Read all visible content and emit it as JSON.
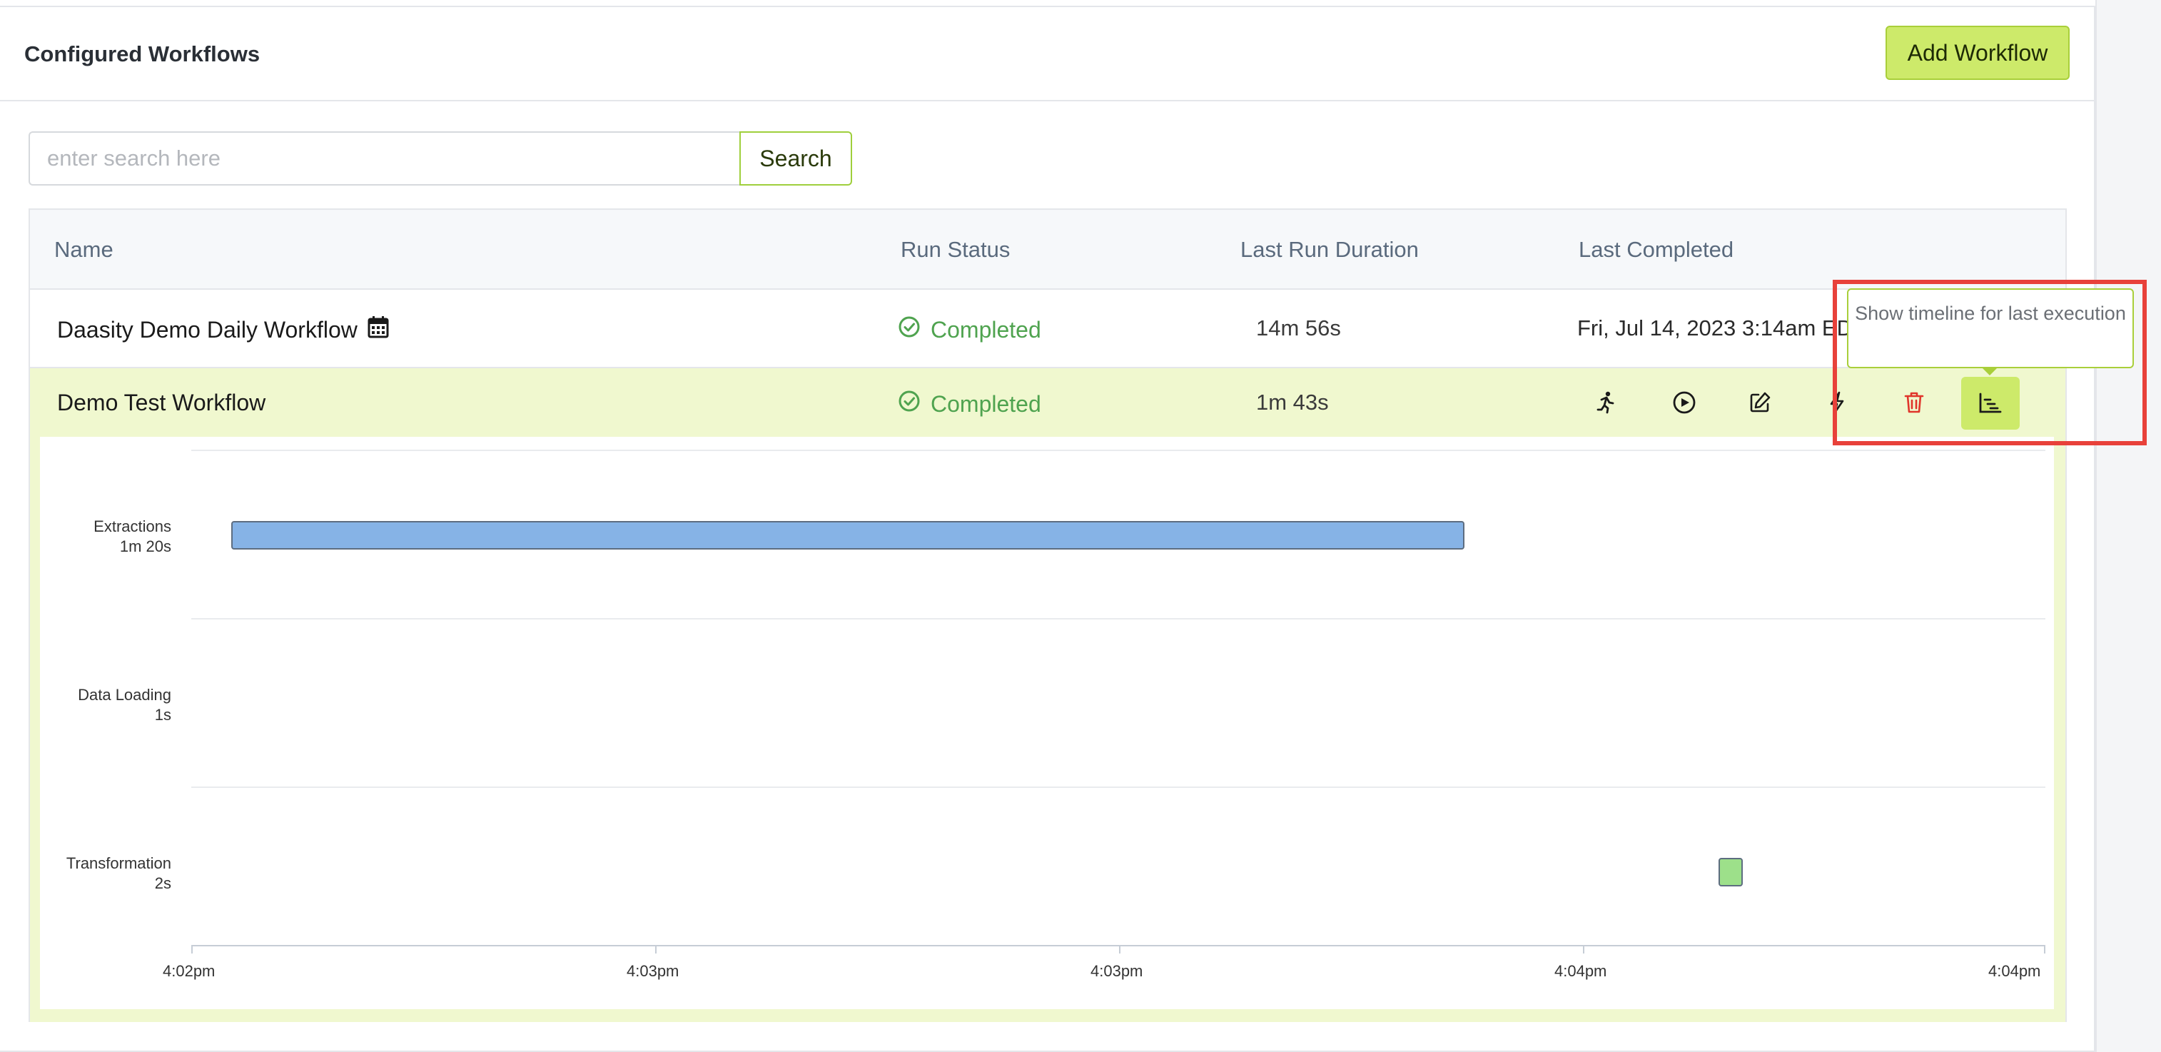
{
  "header": {
    "title": "Configured Workflows",
    "add_button": "Add Workflow"
  },
  "search": {
    "placeholder": "enter search here",
    "button": "Search"
  },
  "table": {
    "columns": [
      "Name",
      "Run Status",
      "Last Run Duration",
      "Last Completed"
    ],
    "rows": [
      {
        "name": "Daasity Demo Daily Workflow",
        "name_icon": "calendar-icon",
        "status": "Completed",
        "duration": "14m 56s",
        "last_completed": "Fri, Jul 14, 2023 3:14am EDT"
      },
      {
        "name": "Demo Test Workflow",
        "status": "Completed",
        "duration": "1m 43s",
        "actions": [
          "run-icon",
          "play-circle-icon",
          "edit-icon",
          "bolt-icon",
          "trash-icon",
          "timeline-chart-icon"
        ]
      }
    ]
  },
  "tooltip": {
    "text": "Show timeline for last execution"
  },
  "timeline": {
    "rows": [
      {
        "label": "Extractions",
        "sublabel": "1m 20s",
        "color": "#86b3e6"
      },
      {
        "label": "Data Loading",
        "sublabel": "1s",
        "color": "#86b3e6"
      },
      {
        "label": "Transformation",
        "sublabel": "2s",
        "color": "#9de08a"
      }
    ],
    "x_ticks": [
      "4:02pm",
      "4:03pm",
      "4:03pm",
      "4:04pm",
      "4:04pm"
    ]
  },
  "colors": {
    "accent": "#cdea6a",
    "status_green": "#4fa34f",
    "delete_red": "#e0352b",
    "highlight": "#e8413a"
  }
}
